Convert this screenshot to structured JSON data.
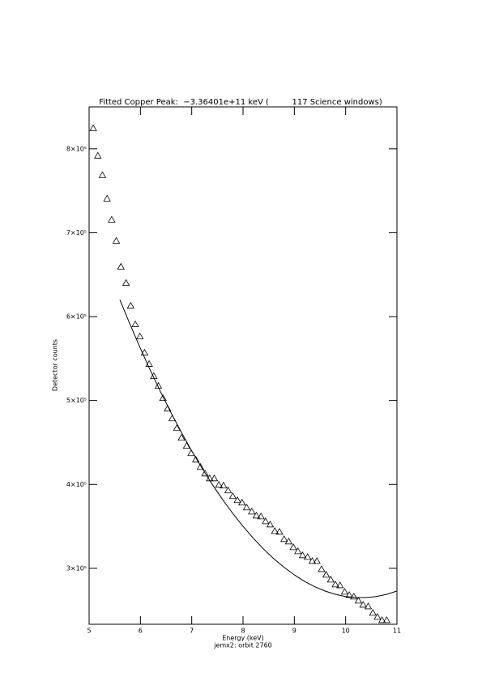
{
  "chart_data": {
    "type": "scatter",
    "title": "Fitted Copper Peak:  −3.36401e+11 keV (         117 Science windows)",
    "x_label": "Energy (keV)",
    "subtitle": "jemx2: orbit 2760",
    "y_label": "Detector counts",
    "xlim": [
      5,
      11
    ],
    "xticks": [
      5,
      6,
      7,
      8,
      9,
      10,
      11
    ],
    "ylim": [
      233300,
      850000
    ],
    "yticks": [
      {
        "value": 300000,
        "label": "3×10⁵"
      },
      {
        "value": 400000,
        "label": "4×10⁵"
      },
      {
        "value": 500000,
        "label": "5×10⁵"
      },
      {
        "value": 600000,
        "label": "6×10⁵"
      },
      {
        "value": 700000,
        "label": "7×10⁵"
      },
      {
        "value": 800000,
        "label": "8×10⁵"
      }
    ],
    "color": "#000000",
    "series": [
      {
        "style": "triangle",
        "x": [
          5.08,
          5.17,
          5.26,
          5.35,
          5.44,
          5.53,
          5.62,
          5.72,
          5.81,
          5.9,
          5.99,
          6.08,
          6.17,
          6.26,
          6.35,
          6.44,
          6.53,
          6.62,
          6.71,
          6.8,
          6.9,
          6.99,
          7.08,
          7.17,
          7.26,
          7.35,
          7.44,
          7.53,
          7.62,
          7.71,
          7.8,
          7.89,
          7.98,
          8.07,
          8.17,
          8.26,
          8.35,
          8.44,
          8.53,
          8.62,
          8.71,
          8.8,
          8.89,
          8.98,
          9.07,
          9.16,
          9.26,
          9.35,
          9.44,
          9.53,
          9.62,
          9.71,
          9.8,
          9.89,
          9.98,
          10.07,
          10.16,
          10.25,
          10.34,
          10.44,
          10.53,
          10.62,
          10.71,
          10.8
        ],
        "values": [
          824600,
          791800,
          768600,
          740600,
          715500,
          690300,
          659400,
          640100,
          613000,
          590800,
          576300,
          557000,
          543500,
          529000,
          517400,
          502900,
          490300,
          478700,
          467100,
          455600,
          445900,
          437200,
          429500,
          420800,
          413000,
          407200,
          407200,
          399500,
          398600,
          392800,
          386000,
          381200,
          378300,
          372500,
          367600,
          362800,
          361800,
          356000,
          352200,
          344400,
          343500,
          334800,
          331900,
          325100,
          320300,
          315500,
          313500,
          308700,
          308700,
          299000,
          292300,
          286500,
          280700,
          279700,
          272000,
          268100,
          266200,
          261400,
          256500,
          254600,
          246900,
          242000,
          238200,
          238200
        ]
      },
      {
        "style": "line",
        "x": [
          5.6,
          5.8,
          6.0,
          6.2,
          6.4,
          6.6,
          6.8,
          7.0,
          7.2,
          7.4,
          7.6,
          7.8,
          8.0,
          8.2,
          8.4,
          8.6,
          8.8,
          9.0,
          9.2,
          9.4,
          9.6,
          9.8,
          10.0,
          10.2,
          10.4,
          10.6,
          10.8,
          11.0
        ],
        "values": [
          620000,
          590400,
          562100,
          535100,
          509400,
          485000,
          461900,
          440000,
          419400,
          400100,
          382100,
          365400,
          350000,
          335900,
          323000,
          311400,
          301200,
          292200,
          284400,
          278000,
          272900,
          269000,
          266400,
          265200,
          265200,
          266400,
          269000,
          272900
        ]
      }
    ]
  }
}
